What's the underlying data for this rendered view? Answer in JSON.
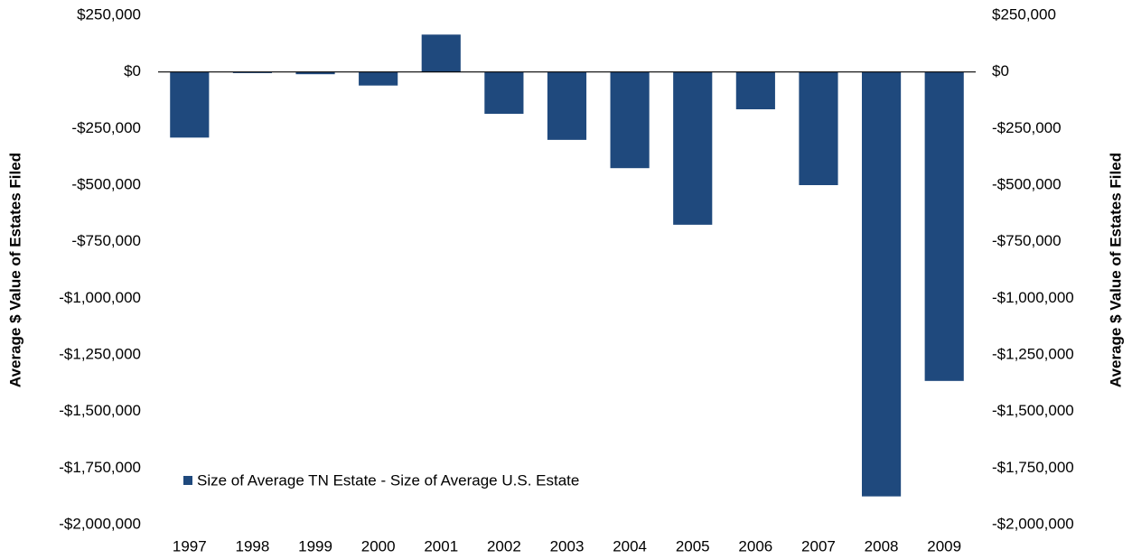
{
  "chart_data": {
    "type": "bar",
    "y_label": "Average $ Value of Estates Filed",
    "y2_label": "Average $ Value of Estates Filed",
    "categories": [
      "1997",
      "1998",
      "1999",
      "2000",
      "2001",
      "2002",
      "2003",
      "2004",
      "2005",
      "2006",
      "2007",
      "2008",
      "2009"
    ],
    "series": [
      {
        "name": "Size of Average TN Estate - Size of Average U.S. Estate",
        "color": "#1f497d",
        "values": [
          -290000,
          -5000,
          -10000,
          -60000,
          165000,
          -185000,
          -300000,
          -425000,
          -675000,
          -165000,
          -500000,
          -1875000,
          -1365000
        ]
      }
    ],
    "ylim": [
      -2000000,
      250000
    ],
    "yticks": [
      {
        "value": -2000000,
        "label": "-$2,000,000"
      },
      {
        "value": -1750000,
        "label": "-$1,750,000"
      },
      {
        "value": -1500000,
        "label": "-$1,500,000"
      },
      {
        "value": -1250000,
        "label": "-$1,250,000"
      },
      {
        "value": -1000000,
        "label": "-$1,000,000"
      },
      {
        "value": -750000,
        "label": "-$750,000"
      },
      {
        "value": -500000,
        "label": "-$500,000"
      },
      {
        "value": -250000,
        "label": "-$250,000"
      },
      {
        "value": 0,
        "label": "$0"
      },
      {
        "value": 250000,
        "label": "$250,000"
      }
    ],
    "y2lim": [
      -2000000,
      250000
    ],
    "y2ticks": [
      {
        "value": -2000000,
        "label": "-$2,000,000"
      },
      {
        "value": -1750000,
        "label": "-$1,750,000"
      },
      {
        "value": -1500000,
        "label": "-$1,500,000"
      },
      {
        "value": -1250000,
        "label": "-$1,250,000"
      },
      {
        "value": -1000000,
        "label": "-$1,000,000"
      },
      {
        "value": -750000,
        "label": "-$750,000"
      },
      {
        "value": -500000,
        "label": "-$500,000"
      },
      {
        "value": -250000,
        "label": "-$250,000"
      },
      {
        "value": 0,
        "label": "$0"
      },
      {
        "value": 250000,
        "label": "$250,000"
      }
    ]
  }
}
